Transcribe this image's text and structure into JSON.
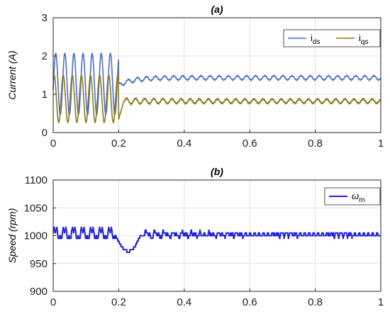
{
  "chart_data": [
    {
      "type": "line",
      "title": "(a)",
      "ylabel": "Current (A)",
      "xlabel": "",
      "xlim": [
        0,
        1
      ],
      "ylim": [
        0,
        3
      ],
      "x_ticks": [
        "0",
        "0.2",
        "0.4",
        "0.6",
        "0.8",
        "1"
      ],
      "y_ticks": [
        "0",
        "1",
        "2",
        "3"
      ],
      "grid": true,
      "legend_position": "top-right",
      "series": [
        {
          "name": "i",
          "subscript": "ds",
          "color": "#4a6fc6",
          "description_points": [
            [
              0,
              0.9
            ],
            [
              0.03,
              2.05
            ],
            [
              0.06,
              0.45
            ],
            [
              0.09,
              2.05
            ],
            [
              0.12,
              0.45
            ],
            [
              0.15,
              2.05
            ],
            [
              0.18,
              0.45
            ],
            [
              0.19,
              2.05
            ],
            [
              0.2,
              1.2
            ],
            [
              0.25,
              1.32
            ],
            [
              0.3,
              1.45
            ],
            [
              0.4,
              1.42
            ],
            [
              0.6,
              1.45
            ],
            [
              0.8,
              1.43
            ],
            [
              1.0,
              1.4
            ]
          ],
          "steady_state_mean": 1.43,
          "steady_state_ripple": 0.06
        },
        {
          "name": "i",
          "subscript": "qs",
          "color": "#8c7a1e",
          "description_points": [
            [
              0,
              0.7
            ],
            [
              0.02,
              1.5
            ],
            [
              0.05,
              0.25
            ],
            [
              0.08,
              1.5
            ],
            [
              0.11,
              0.25
            ],
            [
              0.14,
              1.5
            ],
            [
              0.17,
              0.25
            ],
            [
              0.19,
              1.5
            ],
            [
              0.2,
              0.35
            ],
            [
              0.22,
              0.95
            ],
            [
              0.3,
              0.72
            ],
            [
              0.4,
              0.83
            ],
            [
              0.6,
              0.82
            ],
            [
              0.8,
              0.8
            ],
            [
              1.0,
              0.82
            ]
          ],
          "steady_state_mean": 0.82,
          "steady_state_ripple": 0.09
        }
      ]
    },
    {
      "type": "line",
      "title": "(b)",
      "ylabel": "Speed (rpm)",
      "xlabel": "",
      "xlim": [
        0,
        1
      ],
      "ylim": [
        900,
        1100
      ],
      "x_ticks": [
        "0",
        "0.2",
        "0.4",
        "0.6",
        "0.8",
        "1"
      ],
      "y_ticks": [
        "900",
        "950",
        "1000",
        "1050",
        "1100"
      ],
      "grid": true,
      "legend_position": "top-right",
      "series": [
        {
          "name": "ω",
          "subscript": "m",
          "color": "#1f1fdc",
          "description_points": [
            [
              0,
              995
            ],
            [
              0.05,
              1010
            ],
            [
              0.1,
              1012
            ],
            [
              0.15,
              1005
            ],
            [
              0.18,
              1000
            ],
            [
              0.2,
              985
            ],
            [
              0.21,
              970
            ],
            [
              0.23,
              975
            ],
            [
              0.25,
              995
            ],
            [
              0.3,
              1005
            ],
            [
              0.35,
              1008
            ],
            [
              0.4,
              1003
            ],
            [
              0.6,
              1002
            ],
            [
              0.8,
              1000
            ],
            [
              1.0,
              1000
            ]
          ],
          "steady_state_mean": 1001,
          "steady_state_ripple": 6
        }
      ]
    }
  ]
}
